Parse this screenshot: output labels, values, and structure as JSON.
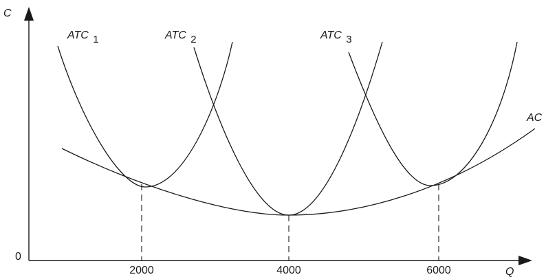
{
  "chart_data": {
    "type": "line",
    "title": "",
    "axes": {
      "x_label": "Q",
      "y_label": "C",
      "origin_label": "0",
      "x_ticks": [
        "2000",
        "4000",
        "6000"
      ],
      "x_tick_values": [
        2000,
        4000,
        6000
      ],
      "xlim": [
        0,
        6800
      ],
      "ylim": [
        0,
        10
      ],
      "grid": false
    },
    "series": [
      {
        "name": "AC",
        "label_base": "AC",
        "label_sub": "",
        "points": [
          [
            500,
            4.5
          ],
          [
            1000,
            3.7
          ],
          [
            2000,
            2.72
          ],
          [
            3000,
            2.12
          ],
          [
            4000,
            1.9
          ],
          [
            5000,
            2.12
          ],
          [
            6000,
            2.72
          ],
          [
            6500,
            3.2
          ],
          [
            6800,
            3.7
          ]
        ]
      },
      {
        "name": "ATC1",
        "label_base": "ATC",
        "label_sub": "1",
        "points": [
          [
            400,
            8.3
          ],
          [
            1000,
            5.3
          ],
          [
            1500,
            3.5
          ],
          [
            2000,
            2.72
          ],
          [
            2500,
            3.5
          ],
          [
            3000,
            5.3
          ],
          [
            3400,
            8.3
          ]
        ]
      },
      {
        "name": "ATC2",
        "label_base": "ATC",
        "label_sub": "2",
        "points": [
          [
            2800,
            8.3
          ],
          [
            3200,
            5.3
          ],
          [
            3600,
            3.0
          ],
          [
            4000,
            1.9
          ],
          [
            4400,
            3.0
          ],
          [
            4800,
            5.3
          ],
          [
            5200,
            8.3
          ]
        ]
      },
      {
        "name": "ATC3",
        "label_base": "ATC",
        "label_sub": "3",
        "points": [
          [
            4800,
            8.3
          ],
          [
            5200,
            5.3
          ],
          [
            5600,
            3.4
          ],
          [
            6000,
            2.72
          ],
          [
            6400,
            3.4
          ],
          [
            6800,
            5.3
          ],
          [
            7100,
            8.3
          ]
        ]
      }
    ],
    "reference_lines": [
      {
        "x": 2000,
        "y": 2.72
      },
      {
        "x": 4000,
        "y": 1.9
      },
      {
        "x": 6000,
        "y": 2.72
      }
    ]
  }
}
